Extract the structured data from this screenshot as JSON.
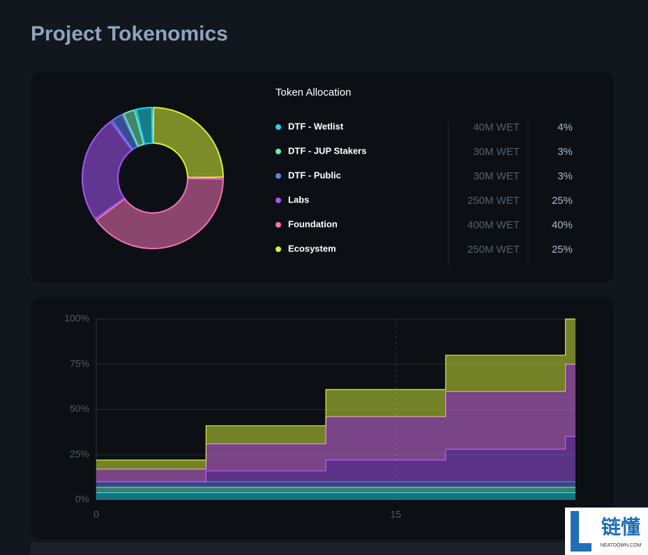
{
  "header": {
    "title": "Project Tokenomics"
  },
  "chart_data": [
    {
      "type": "pie",
      "donut": true,
      "title": "Token Allocation",
      "categories": [
        "DTF - Wetlist",
        "DTF - JUP Stakers",
        "DTF - Public",
        "Labs",
        "Foundation",
        "Ecosystem"
      ],
      "values": [
        4,
        3,
        3,
        25,
        40,
        25
      ],
      "value_labels": [
        "4%",
        "3%",
        "3%",
        "25%",
        "40%",
        "25%"
      ],
      "amount_labels": [
        "40M WET",
        "30M WET",
        "30M WET",
        "250M WET",
        "400M WET",
        "250M WET"
      ],
      "colors": [
        "#22d3ee",
        "#6ee7b7",
        "#5b7ff0",
        "#a855f7",
        "#f472b6",
        "#d9f23a"
      ]
    },
    {
      "type": "area",
      "stacked": true,
      "step": "post",
      "x": [
        0,
        5.5,
        11.5,
        17.5,
        23.5
      ],
      "series": [
        {
          "color": "#22d3ee",
          "values": [
            4,
            4,
            4,
            4,
            4
          ]
        },
        {
          "color": "#6ee7b7",
          "values": [
            3,
            3,
            3,
            3,
            3
          ]
        },
        {
          "color": "#5b7ff0",
          "values": [
            3,
            3,
            3,
            3,
            3
          ]
        },
        {
          "color": "#a855f7",
          "values": [
            0,
            6,
            12,
            18,
            25
          ]
        },
        {
          "color": "#e879f9",
          "values": [
            7,
            15,
            24,
            32,
            40
          ]
        },
        {
          "color": "#d9f23a",
          "values": [
            5,
            10,
            15,
            20,
            25
          ]
        }
      ],
      "xlim": [
        0,
        24
      ],
      "xticks": [
        0,
        15
      ],
      "ylim": [
        0,
        100
      ],
      "yticks": [
        {
          "value": 0,
          "label": "0%"
        },
        {
          "value": 25,
          "label": "25%"
        },
        {
          "value": 50,
          "label": "50%"
        },
        {
          "value": 75,
          "label": "75%"
        },
        {
          "value": 100,
          "label": "100%"
        }
      ],
      "grid": true
    }
  ],
  "watermark": {
    "text": "链懂",
    "sub": "NEATDOWN.COM"
  }
}
